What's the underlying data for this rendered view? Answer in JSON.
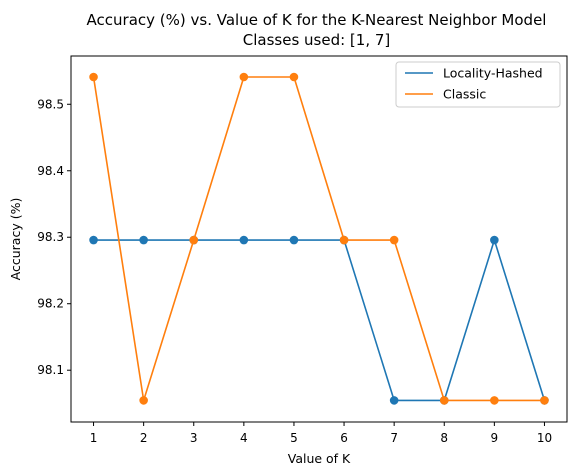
{
  "chart_data": {
    "type": "line",
    "title": "Accuracy (%) vs. Value of K for the K-Nearest Neighbor Model",
    "subtitle": "Classes used: [1, 7]",
    "xlabel": "Value of K",
    "ylabel": "Accuracy (%)",
    "x": [
      1,
      2,
      3,
      4,
      5,
      6,
      7,
      8,
      9,
      10
    ],
    "x_ticks": [
      "1",
      "2",
      "3",
      "4",
      "5",
      "6",
      "7",
      "8",
      "9",
      "10"
    ],
    "y_ticks": [
      98.1,
      98.2,
      98.3,
      98.4,
      98.5
    ],
    "y_tick_labels": [
      "98.1",
      "98.2",
      "98.3",
      "98.4",
      "98.5"
    ],
    "xlim": [
      0.55,
      10.45
    ],
    "ylim": [
      98.0221,
      98.5726
    ],
    "grid": false,
    "legend_position": "top-right",
    "series": [
      {
        "name": "Locality-Hashed",
        "color": "#1f77b4",
        "values": [
          98.2958,
          98.2958,
          98.2958,
          98.2958,
          98.2958,
          98.2958,
          98.0546,
          98.0546,
          98.2958,
          98.0546
        ]
      },
      {
        "name": "Classic",
        "color": "#ff7f0e",
        "values": [
          98.541,
          98.0546,
          98.2958,
          98.541,
          98.541,
          98.2958,
          98.2958,
          98.0546,
          98.0546,
          98.0546
        ]
      }
    ]
  }
}
